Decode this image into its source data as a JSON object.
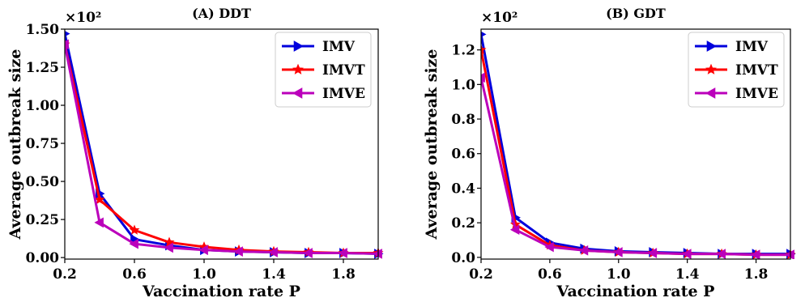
{
  "chart_data": [
    {
      "type": "line",
      "title": "(A) DDT",
      "xlabel": "Vaccination rate P",
      "ylabel": "Average outbreak size",
      "multiplier": "×10²",
      "xlim": [
        0.2,
        2.0
      ],
      "ylim": [
        -0.01,
        1.5
      ],
      "xticks": [
        "0.2",
        "0.6",
        "1.0",
        "1.4",
        "1.8"
      ],
      "yticks": [
        "0.00",
        "0.25",
        "0.50",
        "0.75",
        "1.00",
        "1.25",
        "1.50"
      ],
      "legend_position": "top-right",
      "x": [
        0.2,
        0.4,
        0.6,
        0.8,
        1.0,
        1.2,
        1.4,
        1.6,
        1.8,
        2.0
      ],
      "series": [
        {
          "name": "IMV",
          "color": "#0000dd",
          "marker": "triangle-right",
          "values": [
            1.47,
            0.42,
            0.12,
            0.08,
            0.05,
            0.04,
            0.035,
            0.03,
            0.03,
            0.025
          ]
        },
        {
          "name": "IMVT",
          "color": "#ff0000",
          "marker": "star",
          "values": [
            1.4,
            0.38,
            0.18,
            0.1,
            0.07,
            0.05,
            0.04,
            0.035,
            0.03,
            0.03
          ]
        },
        {
          "name": "IMVE",
          "color": "#bb00bb",
          "marker": "triangle-left",
          "values": [
            1.4,
            0.23,
            0.09,
            0.065,
            0.05,
            0.04,
            0.035,
            0.03,
            0.03,
            0.025
          ]
        }
      ]
    },
    {
      "type": "line",
      "title": "(B) GDT",
      "xlabel": "Vaccination rate P",
      "ylabel": "Average outbreak size",
      "multiplier": "×10²",
      "xlim": [
        0.2,
        2.0
      ],
      "ylim": [
        -0.01,
        1.32
      ],
      "xticks": [
        "0.2",
        "0.6",
        "1.0",
        "1.4",
        "1.8"
      ],
      "yticks": [
        "0.0",
        "0.2",
        "0.4",
        "0.6",
        "0.8",
        "1.0",
        "1.2"
      ],
      "legend_position": "top-right",
      "x": [
        0.2,
        0.4,
        0.6,
        0.8,
        1.0,
        1.2,
        1.4,
        1.6,
        1.8,
        2.0
      ],
      "series": [
        {
          "name": "IMV",
          "color": "#0000dd",
          "marker": "triangle-right",
          "values": [
            1.29,
            0.23,
            0.085,
            0.05,
            0.035,
            0.03,
            0.025,
            0.02,
            0.02,
            0.02
          ]
        },
        {
          "name": "IMVT",
          "color": "#ff0000",
          "marker": "star",
          "values": [
            1.2,
            0.19,
            0.07,
            0.04,
            0.03,
            0.025,
            0.02,
            0.02,
            0.015,
            0.015
          ]
        },
        {
          "name": "IMVE",
          "color": "#bb00bb",
          "marker": "triangle-left",
          "values": [
            1.04,
            0.16,
            0.06,
            0.04,
            0.03,
            0.025,
            0.02,
            0.02,
            0.015,
            0.015
          ]
        }
      ]
    }
  ]
}
